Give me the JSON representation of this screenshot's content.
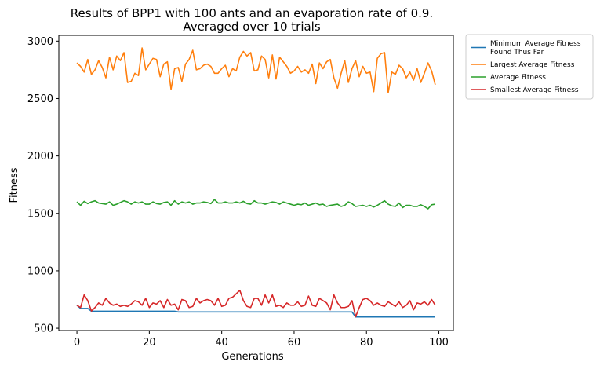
{
  "chart_data": {
    "type": "line",
    "title_lines": [
      "Results of BPP1 with 100 ants and an evaporation rate of 0.9.",
      "Averaged over 10 trials"
    ],
    "xlabel": "Generations",
    "ylabel": "Fitness",
    "xlim": [
      -5,
      104
    ],
    "ylim": [
      480,
      3050
    ],
    "xticks": [
      0,
      20,
      40,
      60,
      80,
      100
    ],
    "yticks": [
      500,
      1000,
      1500,
      2000,
      2500,
      3000
    ],
    "grid": false,
    "legend_placement": "outside-top-right",
    "x_start": 0,
    "x_step": 1,
    "series": [
      {
        "name_lines": [
          "Minimum Average Fitness",
          "Found Thus Far"
        ],
        "color": "#1f77b4",
        "values": [
          700,
          672,
          672,
          672,
          648,
          648,
          648,
          648,
          648,
          648,
          648,
          648,
          648,
          648,
          648,
          648,
          648,
          648,
          648,
          648,
          648,
          648,
          648,
          648,
          648,
          648,
          648,
          648,
          642,
          642,
          642,
          642,
          642,
          642,
          642,
          642,
          642,
          642,
          642,
          642,
          642,
          642,
          642,
          642,
          642,
          642,
          642,
          642,
          642,
          642,
          642,
          642,
          642,
          642,
          642,
          642,
          642,
          642,
          642,
          642,
          642,
          642,
          642,
          642,
          642,
          642,
          642,
          642,
          642,
          642,
          642,
          642,
          642,
          642,
          642,
          642,
          642,
          598,
          598,
          598,
          598,
          598,
          598,
          598,
          598,
          598,
          598,
          598,
          598,
          598,
          598,
          598,
          598,
          598,
          598,
          598,
          598,
          598,
          598,
          598
        ]
      },
      {
        "name_lines": [
          "Largest Average Fitness"
        ],
        "color": "#ff7f0e",
        "values": [
          2810,
          2780,
          2730,
          2840,
          2710,
          2750,
          2830,
          2770,
          2680,
          2860,
          2750,
          2870,
          2830,
          2900,
          2640,
          2650,
          2720,
          2700,
          2940,
          2750,
          2800,
          2850,
          2840,
          2690,
          2800,
          2820,
          2580,
          2760,
          2770,
          2650,
          2800,
          2840,
          2920,
          2750,
          2760,
          2790,
          2800,
          2780,
          2720,
          2720,
          2760,
          2790,
          2690,
          2760,
          2740,
          2860,
          2910,
          2870,
          2900,
          2740,
          2750,
          2870,
          2840,
          2680,
          2880,
          2670,
          2860,
          2820,
          2780,
          2720,
          2740,
          2780,
          2730,
          2750,
          2720,
          2800,
          2630,
          2810,
          2760,
          2820,
          2840,
          2680,
          2590,
          2720,
          2830,
          2640,
          2760,
          2830,
          2690,
          2780,
          2720,
          2730,
          2560,
          2850,
          2890,
          2900,
          2550,
          2730,
          2710,
          2790,
          2760,
          2680,
          2730,
          2660,
          2760,
          2640,
          2720,
          2810,
          2740,
          2620
        ]
      },
      {
        "name_lines": [
          "Average Fitness"
        ],
        "color": "#2ca02c",
        "values": [
          1600,
          1570,
          1605,
          1585,
          1600,
          1610,
          1590,
          1585,
          1580,
          1600,
          1570,
          1580,
          1595,
          1610,
          1600,
          1580,
          1600,
          1590,
          1600,
          1580,
          1580,
          1600,
          1585,
          1580,
          1595,
          1600,
          1570,
          1610,
          1580,
          1600,
          1590,
          1600,
          1580,
          1590,
          1590,
          1600,
          1595,
          1585,
          1620,
          1590,
          1590,
          1600,
          1590,
          1590,
          1600,
          1590,
          1605,
          1585,
          1580,
          1610,
          1590,
          1590,
          1580,
          1590,
          1600,
          1595,
          1580,
          1600,
          1590,
          1580,
          1570,
          1580,
          1575,
          1590,
          1570,
          1580,
          1590,
          1575,
          1580,
          1560,
          1570,
          1575,
          1580,
          1560,
          1570,
          1600,
          1585,
          1560,
          1565,
          1570,
          1560,
          1570,
          1555,
          1570,
          1590,
          1610,
          1580,
          1565,
          1560,
          1590,
          1550,
          1570,
          1570,
          1560,
          1560,
          1575,
          1560,
          1540,
          1575,
          1580
        ]
      },
      {
        "name_lines": [
          "Smallest Average Fitness"
        ],
        "color": "#d62728",
        "values": [
          700,
          680,
          790,
          740,
          650,
          680,
          720,
          700,
          760,
          720,
          700,
          710,
          690,
          700,
          690,
          710,
          740,
          730,
          700,
          760,
          680,
          720,
          710,
          740,
          680,
          750,
          700,
          710,
          660,
          750,
          740,
          680,
          690,
          760,
          720,
          740,
          750,
          740,
          700,
          760,
          690,
          700,
          760,
          770,
          800,
          830,
          740,
          690,
          680,
          760,
          760,
          700,
          790,
          720,
          790,
          690,
          700,
          680,
          720,
          700,
          700,
          730,
          690,
          700,
          780,
          700,
          690,
          760,
          740,
          720,
          660,
          790,
          720,
          680,
          680,
          690,
          740,
          600,
          680,
          750,
          760,
          740,
          700,
          720,
          700,
          690,
          730,
          710,
          690,
          730,
          680,
          700,
          740,
          660,
          720,
          710,
          730,
          700,
          750,
          700
        ]
      }
    ]
  }
}
